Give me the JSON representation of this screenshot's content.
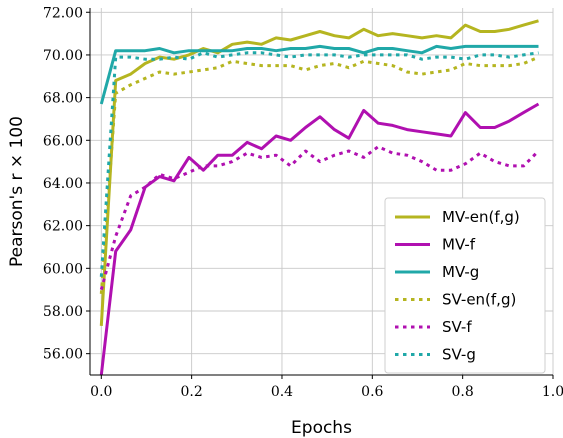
{
  "chart_data": {
    "type": "line",
    "xlabel": "Epochs",
    "ylabel": "Pearson's r × 100",
    "xlim": [
      -0.025,
      1.0
    ],
    "ylim": [
      55.0,
      72.2
    ],
    "xticks": [
      0.0,
      0.2,
      0.4,
      0.6,
      0.8,
      1.0
    ],
    "xtick_labels": [
      "0.0",
      "0.2",
      "0.4",
      "0.6",
      "0.8",
      "1.0"
    ],
    "yticks": [
      56,
      58,
      60,
      62,
      64,
      66,
      68,
      70,
      72
    ],
    "ytick_labels": [
      "56.00",
      "58.00",
      "60.00",
      "62.00",
      "64.00",
      "66.00",
      "68.00",
      "70.00",
      "72.00"
    ],
    "grid": true,
    "legend_position": "center-right",
    "x": [
      0.0,
      0.032,
      0.065,
      0.097,
      0.129,
      0.161,
      0.194,
      0.226,
      0.258,
      0.29,
      0.323,
      0.355,
      0.387,
      0.419,
      0.452,
      0.484,
      0.516,
      0.548,
      0.581,
      0.613,
      0.645,
      0.677,
      0.71,
      0.742,
      0.774,
      0.806,
      0.839,
      0.871,
      0.903,
      0.935,
      0.968
    ],
    "series": [
      {
        "name": "MV-en(f,g)",
        "color": "#b5b520",
        "style": "solid",
        "values": [
          57.3,
          68.8,
          69.1,
          69.6,
          69.9,
          69.8,
          70.0,
          70.3,
          70.1,
          70.5,
          70.6,
          70.5,
          70.8,
          70.7,
          70.9,
          71.1,
          70.9,
          70.8,
          71.2,
          70.9,
          71.0,
          70.9,
          70.8,
          70.9,
          70.8,
          71.4,
          71.1,
          71.1,
          71.2,
          71.4,
          71.6
        ]
      },
      {
        "name": "MV-f",
        "color": "#b010b0",
        "style": "solid",
        "values": [
          55.0,
          60.8,
          61.8,
          63.8,
          64.3,
          64.1,
          65.2,
          64.6,
          65.3,
          65.3,
          65.9,
          65.6,
          66.2,
          66.0,
          66.6,
          67.1,
          66.5,
          66.1,
          67.4,
          66.8,
          66.7,
          66.5,
          66.4,
          66.3,
          66.2,
          67.3,
          66.6,
          66.6,
          66.9,
          67.3,
          67.7
        ]
      },
      {
        "name": "MV-g",
        "color": "#20a8a8",
        "style": "solid",
        "values": [
          67.7,
          70.2,
          70.2,
          70.2,
          70.3,
          70.1,
          70.2,
          70.2,
          70.2,
          70.2,
          70.3,
          70.3,
          70.2,
          70.3,
          70.3,
          70.4,
          70.3,
          70.3,
          70.1,
          70.3,
          70.3,
          70.2,
          70.1,
          70.4,
          70.3,
          70.4,
          70.4,
          70.4,
          70.4,
          70.4,
          70.4
        ]
      },
      {
        "name": "SV-en(f,g)",
        "color": "#b5b520",
        "style": "dotted",
        "values": [
          58.8,
          68.2,
          68.6,
          68.9,
          69.2,
          69.1,
          69.2,
          69.3,
          69.4,
          69.7,
          69.6,
          69.5,
          69.5,
          69.5,
          69.3,
          69.5,
          69.6,
          69.4,
          69.7,
          69.6,
          69.5,
          69.2,
          69.1,
          69.2,
          69.3,
          69.6,
          69.5,
          69.5,
          69.5,
          69.6,
          69.9
        ]
      },
      {
        "name": "SV-f",
        "color": "#b010b0",
        "style": "dotted",
        "values": [
          59.0,
          61.5,
          63.4,
          63.8,
          64.4,
          64.2,
          64.5,
          64.8,
          64.8,
          65.0,
          65.4,
          65.2,
          65.3,
          64.8,
          65.5,
          65.0,
          65.3,
          65.5,
          65.2,
          65.7,
          65.4,
          65.3,
          65.0,
          64.6,
          64.6,
          64.9,
          65.4,
          65.0,
          64.8,
          64.8,
          65.5
        ]
      },
      {
        "name": "SV-g",
        "color": "#20a8a8",
        "style": "dotted",
        "values": [
          59.6,
          69.9,
          69.9,
          69.8,
          69.8,
          69.9,
          69.8,
          70.1,
          69.9,
          70.0,
          70.1,
          70.1,
          70.0,
          69.9,
          70.0,
          70.0,
          70.0,
          69.9,
          70.0,
          70.0,
          70.0,
          70.0,
          69.8,
          69.9,
          69.9,
          69.8,
          70.0,
          70.0,
          69.9,
          70.0,
          70.1
        ]
      }
    ]
  }
}
